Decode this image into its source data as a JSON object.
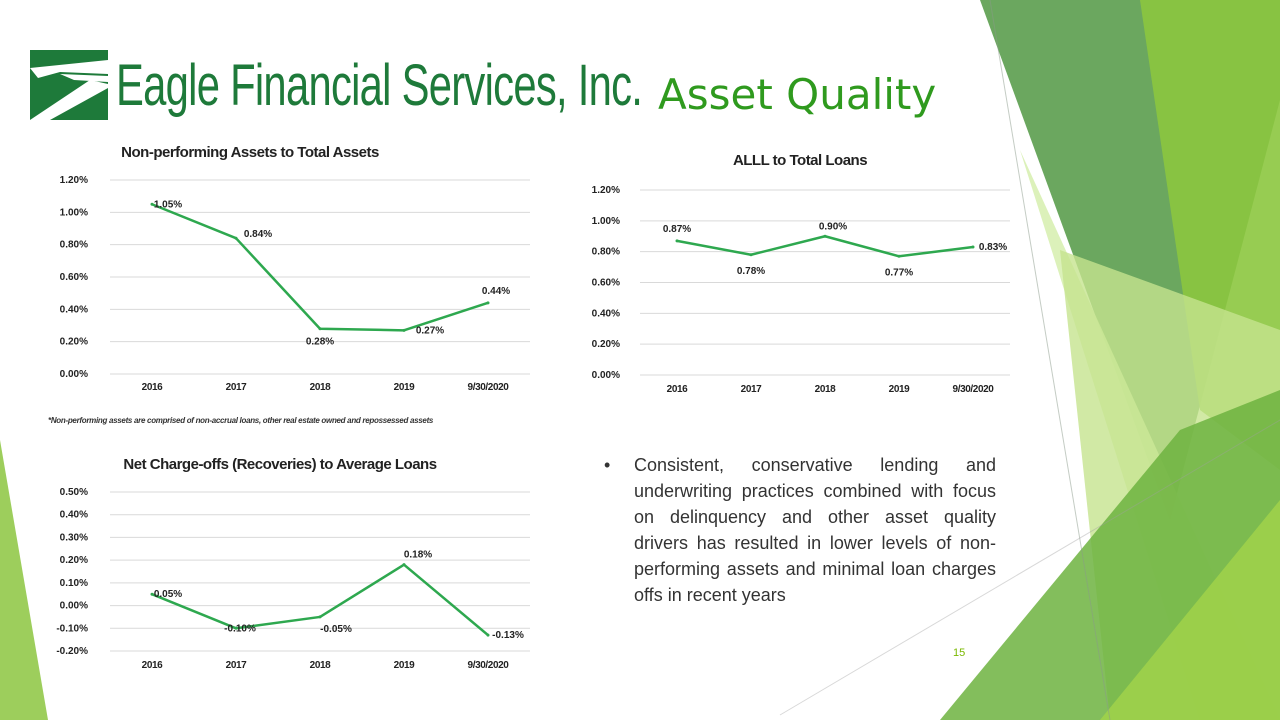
{
  "slide": {
    "company": "Eagle Financial Services, Inc.",
    "title": "Asset Quality",
    "footnote": "*Non-performing assets are comprised of non-accrual loans, other real estate owned and repossessed assets",
    "bullet": "Consistent, conservative lending and underwriting practices combined with focus on delinquency and other asset quality drivers has resulted in lower levels of non-performing assets and minimal loan charges offs in recent years",
    "page_number": "15",
    "colors": {
      "brand_green": "#1e7a3a",
      "title_green": "#2f9a1e",
      "line_green": "#2ea84f",
      "accent_lime": "#8cc63f"
    }
  },
  "chart_data": [
    {
      "type": "line",
      "title": "Non-performing Assets to Total Assets",
      "categories": [
        "2016",
        "2017",
        "2018",
        "2019",
        "9/30/2020"
      ],
      "values": [
        1.05,
        0.84,
        0.28,
        0.27,
        0.44
      ],
      "data_labels": [
        "1.05%",
        "0.84%",
        "0.28%",
        "0.27%",
        "0.44%"
      ],
      "yticks": [
        "0.00%",
        "0.20%",
        "0.40%",
        "0.60%",
        "0.80%",
        "1.00%",
        "1.20%"
      ],
      "ylim": [
        0,
        1.2
      ],
      "grid": true,
      "legend": "none"
    },
    {
      "type": "line",
      "title": "ALLL to Total Loans",
      "categories": [
        "2016",
        "2017",
        "2018",
        "2019",
        "9/30/2020"
      ],
      "values": [
        0.87,
        0.78,
        0.9,
        0.77,
        0.83
      ],
      "data_labels": [
        "0.87%",
        "0.78%",
        "0.90%",
        "0.77%",
        "0.83%"
      ],
      "yticks": [
        "0.00%",
        "0.20%",
        "0.40%",
        "0.60%",
        "0.80%",
        "1.00%",
        "1.20%"
      ],
      "ylim": [
        0,
        1.2
      ],
      "grid": true,
      "legend": "none"
    },
    {
      "type": "line",
      "title": "Net Charge-offs (Recoveries) to Average Loans",
      "categories": [
        "2016",
        "2017",
        "2018",
        "2019",
        "9/30/2020"
      ],
      "values": [
        0.05,
        -0.1,
        -0.05,
        0.18,
        -0.13
      ],
      "data_labels": [
        "0.05%",
        "-0.10%",
        "-0.05%",
        "0.18%",
        "-0.13%"
      ],
      "yticks": [
        "-0.20%",
        "-0.10%",
        "0.00%",
        "0.10%",
        "0.20%",
        "0.30%",
        "0.40%",
        "0.50%"
      ],
      "ylim": [
        -0.2,
        0.5
      ],
      "grid": true,
      "legend": "none"
    }
  ]
}
